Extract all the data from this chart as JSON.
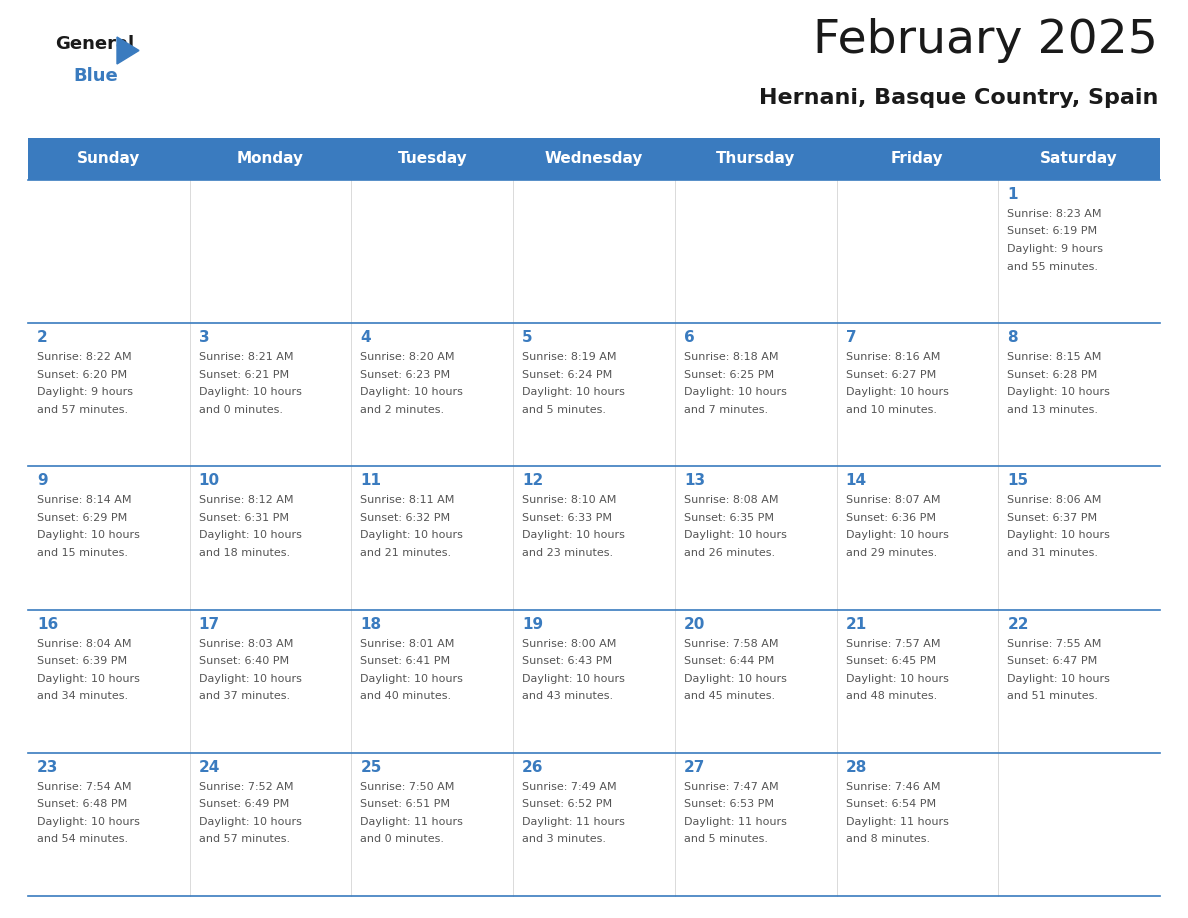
{
  "title": "February 2025",
  "subtitle": "Hernani, Basque Country, Spain",
  "header_color": "#3a7bbf",
  "header_text_color": "#ffffff",
  "text_color": "#555555",
  "days_of_week": [
    "Sunday",
    "Monday",
    "Tuesday",
    "Wednesday",
    "Thursday",
    "Friday",
    "Saturday"
  ],
  "calendar_data": [
    [
      null,
      null,
      null,
      null,
      null,
      null,
      {
        "day": "1",
        "sunrise": "8:23 AM",
        "sunset": "6:19 PM",
        "daylight_line1": "9 hours",
        "daylight_line2": "and 55 minutes."
      }
    ],
    [
      {
        "day": "2",
        "sunrise": "8:22 AM",
        "sunset": "6:20 PM",
        "daylight_line1": "9 hours",
        "daylight_line2": "and 57 minutes."
      },
      {
        "day": "3",
        "sunrise": "8:21 AM",
        "sunset": "6:21 PM",
        "daylight_line1": "10 hours",
        "daylight_line2": "and 0 minutes."
      },
      {
        "day": "4",
        "sunrise": "8:20 AM",
        "sunset": "6:23 PM",
        "daylight_line1": "10 hours",
        "daylight_line2": "and 2 minutes."
      },
      {
        "day": "5",
        "sunrise": "8:19 AM",
        "sunset": "6:24 PM",
        "daylight_line1": "10 hours",
        "daylight_line2": "and 5 minutes."
      },
      {
        "day": "6",
        "sunrise": "8:18 AM",
        "sunset": "6:25 PM",
        "daylight_line1": "10 hours",
        "daylight_line2": "and 7 minutes."
      },
      {
        "day": "7",
        "sunrise": "8:16 AM",
        "sunset": "6:27 PM",
        "daylight_line1": "10 hours",
        "daylight_line2": "and 10 minutes."
      },
      {
        "day": "8",
        "sunrise": "8:15 AM",
        "sunset": "6:28 PM",
        "daylight_line1": "10 hours",
        "daylight_line2": "and 13 minutes."
      }
    ],
    [
      {
        "day": "9",
        "sunrise": "8:14 AM",
        "sunset": "6:29 PM",
        "daylight_line1": "10 hours",
        "daylight_line2": "and 15 minutes."
      },
      {
        "day": "10",
        "sunrise": "8:12 AM",
        "sunset": "6:31 PM",
        "daylight_line1": "10 hours",
        "daylight_line2": "and 18 minutes."
      },
      {
        "day": "11",
        "sunrise": "8:11 AM",
        "sunset": "6:32 PM",
        "daylight_line1": "10 hours",
        "daylight_line2": "and 21 minutes."
      },
      {
        "day": "12",
        "sunrise": "8:10 AM",
        "sunset": "6:33 PM",
        "daylight_line1": "10 hours",
        "daylight_line2": "and 23 minutes."
      },
      {
        "day": "13",
        "sunrise": "8:08 AM",
        "sunset": "6:35 PM",
        "daylight_line1": "10 hours",
        "daylight_line2": "and 26 minutes."
      },
      {
        "day": "14",
        "sunrise": "8:07 AM",
        "sunset": "6:36 PM",
        "daylight_line1": "10 hours",
        "daylight_line2": "and 29 minutes."
      },
      {
        "day": "15",
        "sunrise": "8:06 AM",
        "sunset": "6:37 PM",
        "daylight_line1": "10 hours",
        "daylight_line2": "and 31 minutes."
      }
    ],
    [
      {
        "day": "16",
        "sunrise": "8:04 AM",
        "sunset": "6:39 PM",
        "daylight_line1": "10 hours",
        "daylight_line2": "and 34 minutes."
      },
      {
        "day": "17",
        "sunrise": "8:03 AM",
        "sunset": "6:40 PM",
        "daylight_line1": "10 hours",
        "daylight_line2": "and 37 minutes."
      },
      {
        "day": "18",
        "sunrise": "8:01 AM",
        "sunset": "6:41 PM",
        "daylight_line1": "10 hours",
        "daylight_line2": "and 40 minutes."
      },
      {
        "day": "19",
        "sunrise": "8:00 AM",
        "sunset": "6:43 PM",
        "daylight_line1": "10 hours",
        "daylight_line2": "and 43 minutes."
      },
      {
        "day": "20",
        "sunrise": "7:58 AM",
        "sunset": "6:44 PM",
        "daylight_line1": "10 hours",
        "daylight_line2": "and 45 minutes."
      },
      {
        "day": "21",
        "sunrise": "7:57 AM",
        "sunset": "6:45 PM",
        "daylight_line1": "10 hours",
        "daylight_line2": "and 48 minutes."
      },
      {
        "day": "22",
        "sunrise": "7:55 AM",
        "sunset": "6:47 PM",
        "daylight_line1": "10 hours",
        "daylight_line2": "and 51 minutes."
      }
    ],
    [
      {
        "day": "23",
        "sunrise": "7:54 AM",
        "sunset": "6:48 PM",
        "daylight_line1": "10 hours",
        "daylight_line2": "and 54 minutes."
      },
      {
        "day": "24",
        "sunrise": "7:52 AM",
        "sunset": "6:49 PM",
        "daylight_line1": "10 hours",
        "daylight_line2": "and 57 minutes."
      },
      {
        "day": "25",
        "sunrise": "7:50 AM",
        "sunset": "6:51 PM",
        "daylight_line1": "11 hours",
        "daylight_line2": "and 0 minutes."
      },
      {
        "day": "26",
        "sunrise": "7:49 AM",
        "sunset": "6:52 PM",
        "daylight_line1": "11 hours",
        "daylight_line2": "and 3 minutes."
      },
      {
        "day": "27",
        "sunrise": "7:47 AM",
        "sunset": "6:53 PM",
        "daylight_line1": "11 hours",
        "daylight_line2": "and 5 minutes."
      },
      {
        "day": "28",
        "sunrise": "7:46 AM",
        "sunset": "6:54 PM",
        "daylight_line1": "11 hours",
        "daylight_line2": "and 8 minutes."
      },
      null
    ]
  ],
  "logo_color_black": "#1a1a1a",
  "logo_color_blue": "#3a7bbf",
  "fig_width": 11.88,
  "fig_height": 9.18,
  "dpi": 100
}
